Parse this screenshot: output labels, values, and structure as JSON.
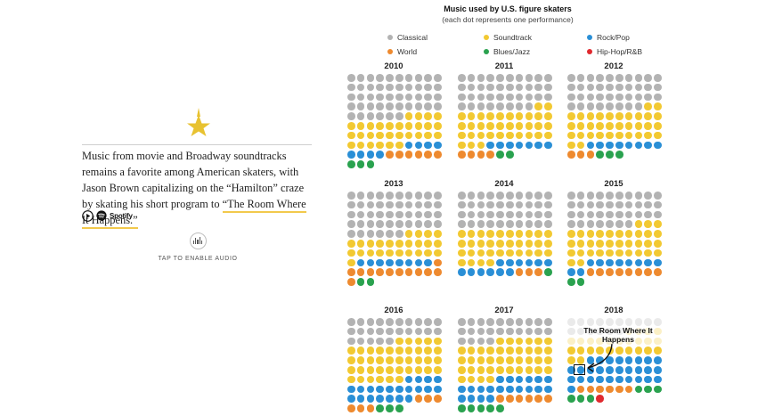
{
  "story": {
    "text_before": "Music from movie and Broadway soundtracks remains a favorite among American skaters, with Jason Brown capitalizing on the “Hamilton” craze by skating his short program to ",
    "link_text": "“The Room Where It Happens.”",
    "spotify_label": "Spotify",
    "audio_label": "TAP TO ENABLE AUDIO",
    "star_color": "#e8c230"
  },
  "chart_data": {
    "type": "dot-grid",
    "title": "Music used by U.S. figure skaters",
    "subtitle": "(each dot represents one performance)",
    "legend": [
      {
        "key": "classical",
        "label": "Classical",
        "color": "#b3b3b3"
      },
      {
        "key": "soundtrack",
        "label": "Soundtrack",
        "color": "#f2c932"
      },
      {
        "key": "rockpop",
        "label": "Rock/Pop",
        "color": "#2a8fd6"
      },
      {
        "key": "world",
        "label": "World",
        "color": "#ee8a2f"
      },
      {
        "key": "bluesjazz",
        "label": "Blues/Jazz",
        "color": "#2aa24f"
      },
      {
        "key": "hiphop",
        "label": "Hip-Hop/R&B",
        "color": "#e0292e"
      }
    ],
    "panels": [
      {
        "year": "2010",
        "counts": {
          "classical": 46,
          "soundtrack": 30,
          "rockpop": 8,
          "world": 6,
          "bluesjazz": 3,
          "hiphop": 0
        }
      },
      {
        "year": "2011",
        "counts": {
          "classical": 38,
          "soundtrack": 35,
          "rockpop": 7,
          "world": 4,
          "bluesjazz": 2,
          "hiphop": 0
        }
      },
      {
        "year": "2012",
        "counts": {
          "classical": 38,
          "soundtrack": 34,
          "rockpop": 8,
          "world": 3,
          "bluesjazz": 3,
          "hiphop": 0
        }
      },
      {
        "year": "2013",
        "counts": {
          "classical": 46,
          "soundtrack": 25,
          "rockpop": 8,
          "world": 12,
          "bluesjazz": 2,
          "hiphop": 0
        }
      },
      {
        "year": "2014",
        "counts": {
          "classical": 40,
          "soundtrack": 34,
          "rockpop": 12,
          "world": 3,
          "bluesjazz": 1,
          "hiphop": 0
        }
      },
      {
        "year": "2015",
        "counts": {
          "classical": 37,
          "soundtrack": 35,
          "rockpop": 10,
          "world": 8,
          "bluesjazz": 2,
          "hiphop": 0
        }
      },
      {
        "year": "2016",
        "counts": {
          "classical": 25,
          "soundtrack": 41,
          "rockpop": 21,
          "world": 6,
          "bluesjazz": 3,
          "hiphop": 0
        }
      },
      {
        "year": "2017",
        "counts": {
          "classical": 24,
          "soundtrack": 40,
          "rockpop": 20,
          "world": 6,
          "bluesjazz": 5,
          "hiphop": 0
        }
      },
      {
        "year": "2018",
        "counts": {
          "classical": 16,
          "soundtrack": 26,
          "rockpop": 29,
          "world": 6,
          "bluesjazz": 6,
          "hiphop": 1
        },
        "faded_rows": 3,
        "highlight_index": 27
      }
    ],
    "annotation": {
      "year": "2018",
      "text": "The Room Where It Happens",
      "category": "soundtrack"
    }
  }
}
